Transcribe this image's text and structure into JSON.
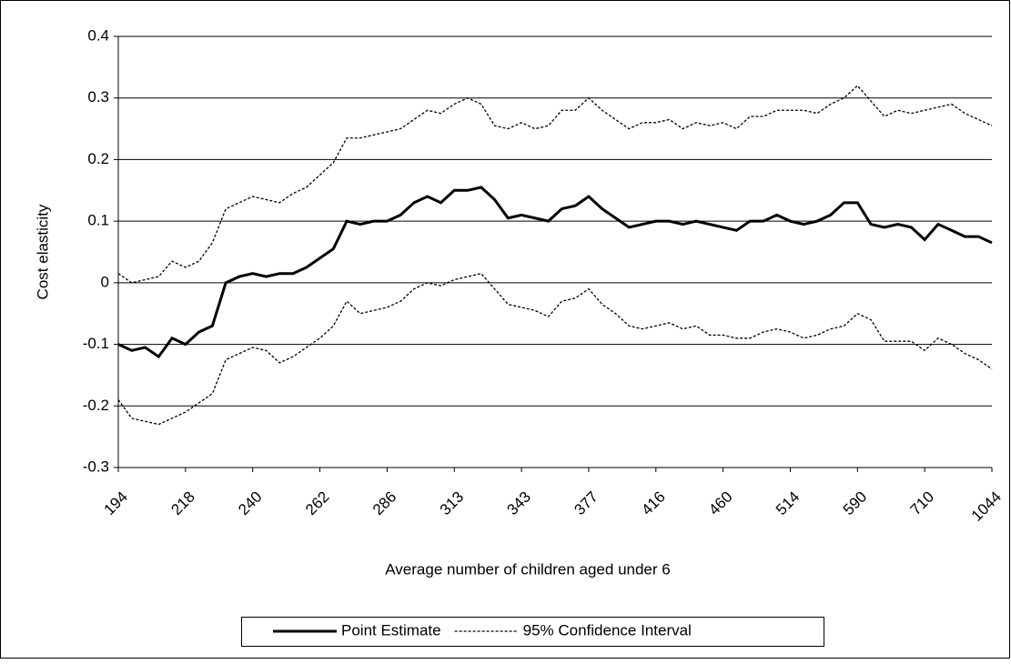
{
  "chart_data": {
    "type": "line",
    "x_label": "Average number of children aged under 6",
    "y_label": "Cost elasticity",
    "categories": [
      "194",
      null,
      null,
      null,
      null,
      "218",
      null,
      null,
      null,
      null,
      "240",
      null,
      null,
      null,
      null,
      "262",
      null,
      null,
      null,
      null,
      "286",
      null,
      null,
      null,
      null,
      "313",
      null,
      null,
      null,
      null,
      "343",
      null,
      null,
      null,
      null,
      "377",
      null,
      null,
      null,
      null,
      "416",
      null,
      null,
      null,
      null,
      "460",
      null,
      null,
      null,
      null,
      "514",
      null,
      null,
      null,
      null,
      "590",
      null,
      null,
      null,
      null,
      "710",
      null,
      null,
      null,
      null,
      "1044"
    ],
    "ylim": [
      -0.3,
      0.4
    ],
    "yticks": [
      -0.3,
      -0.2,
      -0.1,
      0,
      0.1,
      0.2,
      0.3,
      0.4
    ],
    "grid": true,
    "legend": "bottom",
    "series": [
      {
        "name": "Point Estimate",
        "color": "#000000",
        "style": "solid",
        "values": [
          -0.1,
          -0.11,
          -0.105,
          -0.12,
          -0.09,
          -0.1,
          -0.08,
          -0.07,
          0.0,
          0.01,
          0.015,
          0.01,
          0.015,
          0.015,
          0.025,
          0.04,
          0.055,
          0.1,
          0.095,
          0.1,
          0.1,
          0.11,
          0.13,
          0.14,
          0.13,
          0.15,
          0.15,
          0.155,
          0.135,
          0.105,
          0.11,
          0.105,
          0.1,
          0.12,
          0.125,
          0.14,
          0.12,
          0.105,
          0.09,
          0.095,
          0.1,
          0.1,
          0.095,
          0.1,
          0.095,
          0.09,
          0.085,
          0.1,
          0.1,
          0.11,
          0.1,
          0.095,
          0.1,
          0.11,
          0.13,
          0.13,
          0.095,
          0.09,
          0.095,
          0.09,
          0.07,
          0.095,
          0.085,
          0.075,
          0.075,
          0.065
        ]
      },
      {
        "name": "95% Confidence Interval",
        "color": "#000000",
        "style": "dotted",
        "upper": [
          0.015,
          0.0,
          0.005,
          0.01,
          0.035,
          0.025,
          0.035,
          0.065,
          0.12,
          0.13,
          0.14,
          0.135,
          0.13,
          0.145,
          0.155,
          0.175,
          0.195,
          0.235,
          0.235,
          0.24,
          0.245,
          0.25,
          0.265,
          0.28,
          0.275,
          0.29,
          0.3,
          0.29,
          0.255,
          0.25,
          0.26,
          0.25,
          0.255,
          0.28,
          0.28,
          0.3,
          0.28,
          0.265,
          0.25,
          0.26,
          0.26,
          0.265,
          0.25,
          0.26,
          0.255,
          0.26,
          0.25,
          0.27,
          0.27,
          0.28,
          0.28,
          0.28,
          0.275,
          0.29,
          0.3,
          0.32,
          0.295,
          0.27,
          0.28,
          0.275,
          0.28,
          0.285,
          0.29,
          0.275,
          0.265,
          0.255
        ],
        "lower": [
          -0.19,
          -0.22,
          -0.225,
          -0.23,
          -0.22,
          -0.21,
          -0.195,
          -0.18,
          -0.125,
          -0.115,
          -0.105,
          -0.11,
          -0.13,
          -0.12,
          -0.105,
          -0.09,
          -0.07,
          -0.03,
          -0.05,
          -0.045,
          -0.04,
          -0.03,
          -0.01,
          0.0,
          -0.005,
          0.005,
          0.01,
          0.015,
          -0.01,
          -0.035,
          -0.04,
          -0.045,
          -0.055,
          -0.03,
          -0.025,
          -0.01,
          -0.035,
          -0.05,
          -0.07,
          -0.075,
          -0.07,
          -0.065,
          -0.075,
          -0.07,
          -0.085,
          -0.085,
          -0.09,
          -0.09,
          -0.08,
          -0.075,
          -0.08,
          -0.09,
          -0.085,
          -0.075,
          -0.07,
          -0.05,
          -0.06,
          -0.095,
          -0.095,
          -0.095,
          -0.11,
          -0.09,
          -0.1,
          -0.115,
          -0.125,
          -0.14
        ]
      }
    ]
  }
}
